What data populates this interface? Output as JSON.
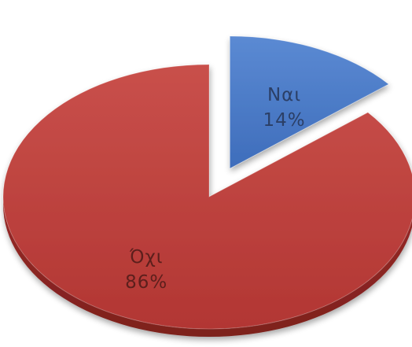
{
  "chart_data": {
    "type": "pie",
    "title": "",
    "slices": [
      {
        "label": "Ναι",
        "value": 14,
        "value_label": "14%",
        "color": "#4a7cc9",
        "exploded": true
      },
      {
        "label": "Όχι",
        "value": 86,
        "value_label": "86%",
        "color": "#c0403c",
        "exploded": false
      }
    ],
    "style": "3d-tilted",
    "legend": "none"
  }
}
